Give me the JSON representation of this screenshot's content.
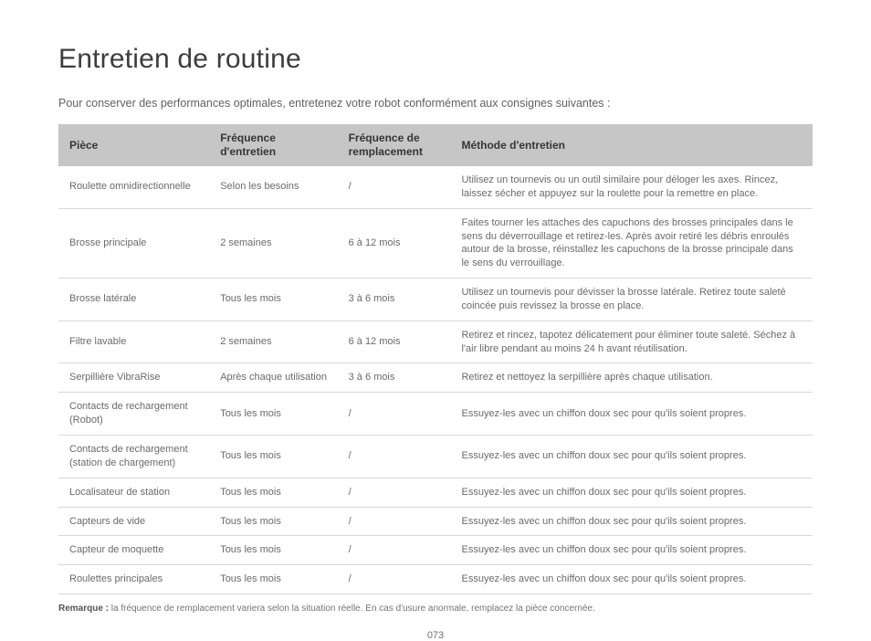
{
  "title": "Entretien de routine",
  "intro": "Pour conserver des performances optimales, entretenez votre robot conformément aux consignes suivantes :",
  "table": {
    "columns": [
      "Pièce",
      "Fréquence d'entretien",
      "Fréquence de remplacement",
      "Méthode d'entretien"
    ],
    "rows": [
      [
        "Roulette omnidirectionnelle",
        "Selon les besoins",
        "/",
        "Utilisez un tournevis ou un outil similaire pour déloger les axes. Rincez, laissez sécher et appuyez sur la roulette pour la remettre en place."
      ],
      [
        "Brosse principale",
        "2 semaines",
        "6 à 12 mois",
        "Faites tourner les attaches des capuchons des brosses principales dans le sens du déverrouillage et retirez-les. Après avoir retiré les débris enroulés autour de la brosse, réinstallez les capuchons de la brosse principale dans le sens du verrouillage."
      ],
      [
        "Brosse latérale",
        "Tous les mois",
        "3 à 6 mois",
        "Utilisez un tournevis pour dévisser la brosse latérale. Retirez toute saleté coincée puis revissez la brosse en place."
      ],
      [
        "Filtre lavable",
        "2 semaines",
        "6 à 12 mois",
        "Retirez et rincez, tapotez délicatement pour éliminer toute saleté. Séchez à l'air libre pendant au moins 24 h avant réutilisation."
      ],
      [
        "Serpillière VibraRise",
        "Après chaque utilisation",
        "3 à 6 mois",
        "Retirez et nettoyez la serpillière après chaque utilisation."
      ],
      [
        "Contacts de rechargement (Robot)",
        "Tous les mois",
        "/",
        "Essuyez-les avec un chiffon doux sec pour qu'ils soient propres."
      ],
      [
        "Contacts de rechargement (station de chargement)",
        "Tous les mois",
        "/",
        "Essuyez-les avec un chiffon doux sec pour qu'ils soient propres."
      ],
      [
        "Localisateur de station",
        "Tous les mois",
        "/",
        "Essuyez-les avec un chiffon doux sec pour qu'ils soient propres."
      ],
      [
        "Capteurs de vide",
        "Tous les mois",
        "/",
        "Essuyez-les avec un chiffon doux sec pour qu'ils soient propres."
      ],
      [
        "Capteur de moquette",
        "Tous les mois",
        "/",
        "Essuyez-les avec un chiffon doux sec pour qu'ils soient propres."
      ],
      [
        "Roulettes principales",
        "Tous les mois",
        "/",
        "Essuyez-les avec un chiffon doux sec pour qu'ils soient propres."
      ]
    ]
  },
  "note_label": "Remarque :",
  "note_text": " la fréquence de remplacement variera selon la situation réelle. En cas d'usure anormale, remplacez la pièce concernée.",
  "page_number": "073"
}
